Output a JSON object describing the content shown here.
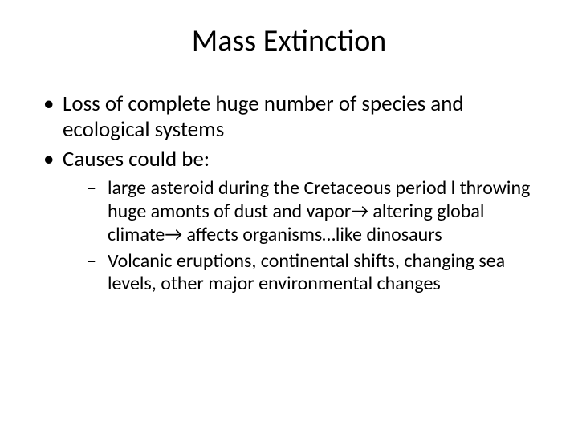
{
  "slide": {
    "title": "Mass Extinction",
    "title_fontsize": 38,
    "background_color": "#ffffff",
    "text_color": "#000000",
    "bullets": [
      {
        "text": "Loss of complete huge number of species and ecological systems"
      },
      {
        "text": "Causes could be:",
        "children": [
          {
            "text": " large asteroid during the Cretaceous period l throwing huge amonts of dust and vapor→ altering global climate→ affects organisms…like dinosaurs"
          },
          {
            "text": "Volcanic eruptions, continental shifts, changing sea levels, other major environmental changes"
          }
        ]
      }
    ],
    "level1_fontsize": 27,
    "level2_fontsize": 24
  }
}
